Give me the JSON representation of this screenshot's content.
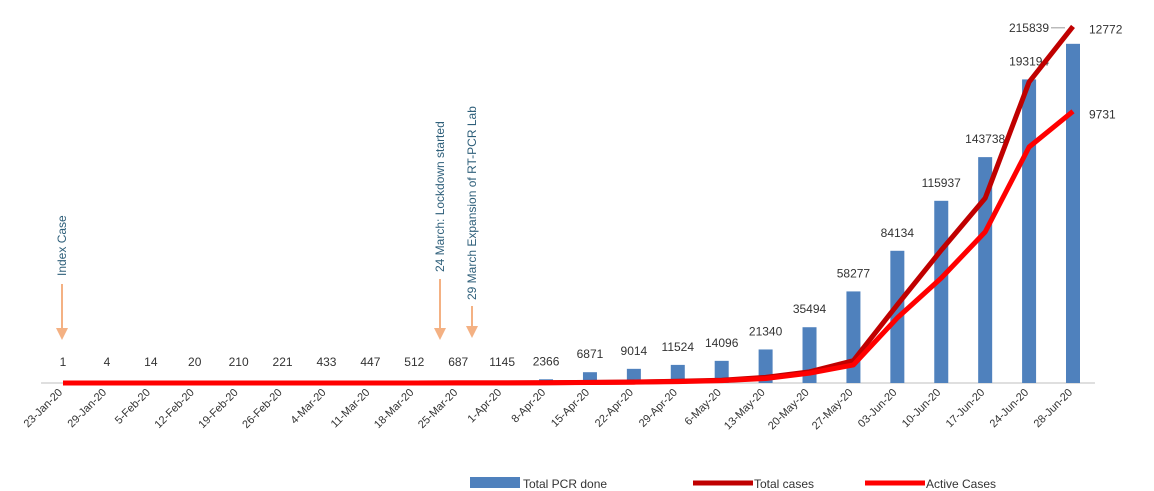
{
  "chart_data": {
    "type": "combo",
    "categories": [
      "23-Jan-20",
      "29-Jan-20",
      "5-Feb-20",
      "12-Feb-20",
      "19-Feb-20",
      "26-Feb-20",
      "4-Mar-20",
      "11-Mar-20",
      "18-Mar-20",
      "25-Mar-20",
      "1-Apr-20",
      "8-Apr-20",
      "15-Apr-20",
      "22-Apr-20",
      "29-Apr-20",
      "6-May-20",
      "13-May-20",
      "20-May-20",
      "27-May-20",
      "03-Jun-20",
      "10-Jun-20",
      "17-Jun-20",
      "24-Jun-20",
      "28-Jun-20"
    ],
    "ylim": [
      0,
      231000
    ],
    "y2lim": [
      0,
      13000
    ],
    "series": [
      {
        "name": "Total PCR done",
        "type": "bar",
        "color": "#4f81bd",
        "values": [
          1,
          4,
          14,
          20,
          210,
          221,
          433,
          447,
          512,
          687,
          1145,
          2366,
          6871,
          9014,
          11524,
          14096,
          21340,
          35494,
          58277,
          84134,
          115937,
          143738,
          193194,
          215839
        ]
      },
      {
        "name": "Total  cases",
        "type": "line",
        "axis": "y2",
        "color": "#c00000",
        "values": [
          1,
          1,
          1,
          1,
          1,
          1,
          1,
          1,
          1,
          3,
          5,
          10,
          20,
          35,
          60,
          100,
          200,
          400,
          800,
          2800,
          4760,
          6620,
          10780,
          12772
        ]
      },
      {
        "name": "Active Cases",
        "type": "line",
        "axis": "y2",
        "color": "#ff0000",
        "values": [
          1,
          1,
          1,
          1,
          1,
          1,
          1,
          1,
          1,
          3,
          5,
          9,
          18,
          30,
          50,
          85,
          160,
          350,
          650,
          2330,
          3760,
          5410,
          8450,
          9731
        ]
      }
    ],
    "annotations": [
      "Index Case",
      "24 March: Lockdown started",
      "29 March Expansion of RT-PCR Lab"
    ]
  }
}
